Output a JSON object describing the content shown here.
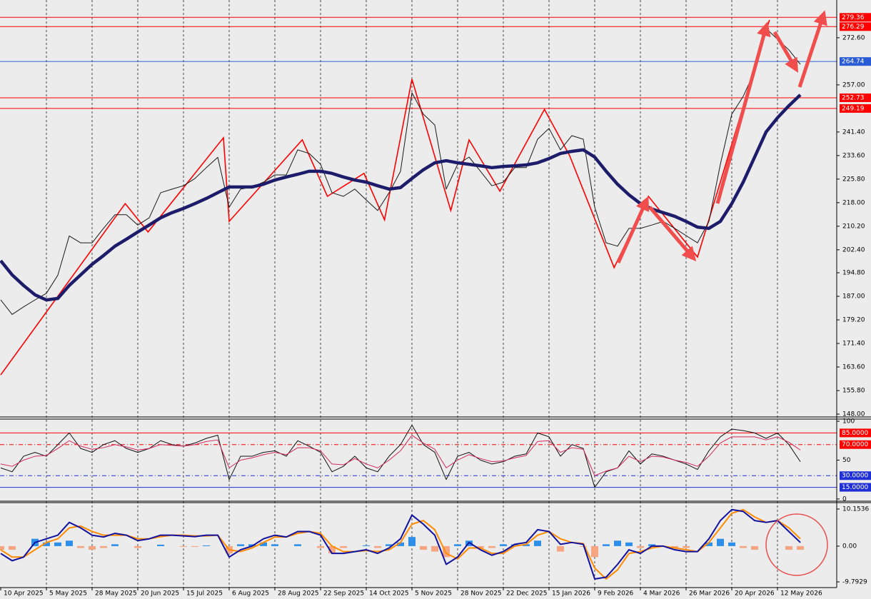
{
  "chart_data": [
    {
      "type": "line",
      "categories": [
        "10 Apr 2025",
        null,
        null,
        null,
        "5 May 2025",
        null,
        null,
        null,
        "28 May 2025",
        null,
        null,
        null,
        "20 Jun 2025",
        null,
        null,
        null,
        "15 Jul 2025",
        null,
        null,
        null,
        "6 Aug 2025",
        null,
        null,
        null,
        "28 Aug 2025",
        null,
        null,
        null,
        "22 Sep 2025",
        null,
        null,
        null,
        "14 Oct 2025",
        null,
        null,
        null,
        "5 Nov 2025",
        null,
        null,
        null,
        "28 Nov 2025",
        null,
        null,
        null,
        "22 Dec 2025",
        null,
        null,
        null,
        "15 Jan 2026",
        null,
        null,
        null,
        "9 Feb 2026",
        null,
        null,
        null,
        "4 Mar 2026",
        null,
        null,
        null,
        "26 Mar 2026",
        null,
        null,
        null,
        "20 Apr 2026",
        null,
        null,
        null,
        "12 May 2026",
        null,
        null
      ],
      "series": [
        {
          "color": "#1a1a1a",
          "values": [
            185.8,
            181,
            183.5,
            185.8,
            188,
            194,
            207,
            204.7,
            204.7,
            209.5,
            214,
            214,
            210.6,
            213,
            221.3,
            222.5,
            223.6,
            226,
            229.6,
            233,
            216.5,
            222.5,
            223.2,
            224.8,
            227.2,
            227.2,
            235.5,
            234.3,
            230.7,
            221.3,
            220.1,
            222.5,
            218.9,
            215.4,
            221.3,
            228.4,
            254.4,
            247.3,
            243.7,
            222.5,
            230.7,
            233.1,
            228.4,
            223.6,
            224.8,
            229.6,
            229.6,
            239,
            242.6,
            235.5,
            240.2,
            239,
            216.5,
            204.7,
            203.6,
            209.5,
            209.5,
            210.6,
            211.8,
            209.5,
            207.1,
            204.7,
            211.8,
            230.7,
            247.3,
            253.2,
            261.5,
            275.7,
            272.1,
            268.6,
            263.8
          ]
        },
        {
          "color": "#1c1c6b",
          "values": [
            198.8,
            194.1,
            190.6,
            187.5,
            185.8,
            186.3,
            190.6,
            194.1,
            197.6,
            200.5,
            203.6,
            205.9,
            208.3,
            210.6,
            213,
            214.7,
            216.1,
            217.7,
            219.4,
            221.3,
            223.2,
            223.2,
            223.2,
            224.1,
            225.5,
            226.5,
            227.4,
            228.4,
            228.4,
            227.7,
            226.5,
            225.5,
            224.8,
            223.6,
            222.5,
            223,
            226,
            228.9,
            231.2,
            231.9,
            231.2,
            230.7,
            230.2,
            229.6,
            230,
            230.2,
            230.5,
            231.2,
            232.6,
            234.3,
            235,
            235.5,
            233.1,
            228.4,
            224.1,
            220.6,
            217.7,
            215.9,
            214.7,
            213.5,
            211.8,
            209.9,
            209.5,
            211.8,
            217.7,
            224.8,
            233.1,
            241.4,
            246.1,
            250.1,
            253.7
          ]
        }
      ],
      "zigzag": {
        "color": "#ff0000",
        "x": [
          0,
          10.9,
          12.9,
          19.5,
          20,
          26.4,
          28.6,
          31.8,
          33.6,
          36,
          39.4,
          41,
          43.7,
          47.6,
          49.8,
          53.7,
          56.7,
          61,
          61.8,
          67.3
        ],
        "values": [
          161,
          217.7,
          208.3,
          239.5,
          211.8,
          238.8,
          220.1,
          227.7,
          212.3,
          258.9,
          215.4,
          238.8,
          221.8,
          248.9,
          233.6,
          196.5,
          220.1,
          200,
          209.9,
          278.5
        ]
      },
      "levels": [
        {
          "value": 279.36,
          "color": "#ff0000"
        },
        {
          "value": 276.29,
          "color": "#ff0000"
        },
        {
          "value": 264.74,
          "color": "#2a5bd7"
        },
        {
          "value": 252.73,
          "color": "#ff0000"
        },
        {
          "value": 249.19,
          "color": "#ff0000"
        }
      ],
      "ylim": [
        147.3,
        285.1
      ],
      "yticks": [
        {
          "value": 272.6,
          "label": "272.60"
        },
        {
          "value": 257,
          "label": "257.00"
        },
        {
          "value": 241.4,
          "label": "241.40"
        },
        {
          "value": 233.6,
          "label": "233.60"
        },
        {
          "value": 225.8,
          "label": "225.80"
        },
        {
          "value": 218,
          "label": "218.00"
        },
        {
          "value": 210.2,
          "label": "210.20"
        },
        {
          "value": 202.4,
          "label": "202.40"
        },
        {
          "value": 194.8,
          "label": "194.80"
        },
        {
          "value": 187,
          "label": "187.00"
        },
        {
          "value": 179.2,
          "label": "179.20"
        },
        {
          "value": 171.4,
          "label": "171.40"
        },
        {
          "value": 163.6,
          "label": "163.60"
        },
        {
          "value": 155.8,
          "label": "155.80"
        },
        {
          "value": 148,
          "label": "148.00"
        }
      ]
    },
    {
      "type": "line",
      "series": [
        {
          "color": "#111111",
          "values": [
            40,
            35,
            55,
            60,
            55,
            70,
            85,
            65,
            60,
            70,
            75,
            65,
            60,
            65,
            75,
            70,
            68,
            72,
            78,
            82,
            25,
            55,
            55,
            60,
            62,
            55,
            75,
            68,
            60,
            35,
            42,
            55,
            40,
            35,
            55,
            70,
            95,
            70,
            60,
            25,
            55,
            60,
            50,
            45,
            48,
            55,
            58,
            85,
            80,
            55,
            70,
            65,
            15,
            35,
            40,
            62,
            45,
            58,
            55,
            50,
            45,
            38,
            62,
            80,
            90,
            88,
            85,
            78,
            85,
            70,
            48
          ]
        },
        {
          "color": "#d42a5a",
          "values": [
            45,
            42,
            50,
            55,
            56,
            65,
            75,
            68,
            64,
            66,
            70,
            67,
            63,
            65,
            70,
            69,
            68,
            70,
            74,
            76,
            40,
            50,
            53,
            57,
            60,
            57,
            66,
            66,
            62,
            45,
            44,
            52,
            45,
            40,
            50,
            62,
            82,
            72,
            64,
            40,
            50,
            57,
            52,
            48,
            49,
            53,
            56,
            74,
            75,
            60,
            66,
            64,
            30,
            36,
            40,
            55,
            48,
            55,
            54,
            50,
            47,
            42,
            55,
            72,
            80,
            80,
            80,
            76,
            80,
            73,
            63
          ]
        }
      ],
      "levels": [
        {
          "value": 85,
          "label": "85.0000",
          "color": "#ff0000",
          "style": "solid"
        },
        {
          "value": 70,
          "label": "70.0000",
          "color": "#ff0000",
          "style": "dashdot"
        },
        {
          "value": 30,
          "label": "30.0000",
          "color": "#1f2fd6",
          "style": "dashdot"
        },
        {
          "value": 15,
          "label": "15.0000",
          "color": "#1f2fd6",
          "style": "solid"
        }
      ],
      "ylim": [
        -2.86,
        101.9
      ],
      "yticks": [
        100,
        50,
        0
      ]
    },
    {
      "type": "macd",
      "histogram": {
        "up_color": "#2f8fe8",
        "down_color": "#f6a582",
        "values": [
          -1,
          -1,
          0,
          2,
          1,
          1,
          1.5,
          -0.5,
          -1,
          -0.5,
          0.5,
          0,
          -0.5,
          0,
          0.4,
          0,
          -0.2,
          -0.2,
          0.2,
          0,
          -2,
          0.5,
          0.5,
          1,
          0.5,
          0,
          0.5,
          0,
          -0.5,
          -2,
          -0.5,
          0,
          0.2,
          -0.5,
          0.5,
          1,
          2.5,
          -1,
          -1.5,
          -3,
          0.5,
          1.5,
          -0.5,
          -0.5,
          0.5,
          0.5,
          0.5,
          1.5,
          0,
          -1.5,
          0,
          -0.2,
          -3,
          0.5,
          1.5,
          1,
          -0.5,
          0.5,
          0,
          -0.5,
          -0.5,
          0,
          1,
          2,
          1,
          -0.5,
          -1,
          0,
          0,
          -1,
          -1
        ]
      },
      "series": [
        {
          "color": "#ff8c00",
          "values": [
            -1,
            -3,
            -3,
            -1,
            1,
            2,
            5,
            5.5,
            4,
            3,
            3,
            3,
            2,
            2,
            2.6,
            3,
            3,
            2.8,
            2.8,
            3,
            -1,
            -1.5,
            -0.5,
            1,
            2.5,
            2.5,
            3.5,
            4,
            3.5,
            0,
            -1.5,
            -1.5,
            -1.2,
            -1.5,
            -1,
            1,
            6,
            7,
            4.5,
            -2,
            -3.5,
            -0.5,
            -0.5,
            -2,
            -2,
            0,
            0.5,
            3,
            4,
            2,
            1,
            0.7,
            -6,
            -9,
            -6.5,
            -2,
            -1.5,
            -0.5,
            0,
            -0.5,
            -1,
            -1.5,
            1,
            5,
            9,
            10,
            8,
            6.5,
            7,
            5,
            2
          ]
        },
        {
          "color": "#1212a0",
          "values": [
            -2,
            -4,
            -3,
            1,
            2,
            3,
            6.5,
            5,
            3,
            2.5,
            3.5,
            3,
            1.5,
            2,
            3,
            3,
            2.8,
            2.6,
            3,
            3,
            -3,
            -1,
            0,
            2,
            3,
            2.5,
            4,
            4,
            3,
            -2,
            -2,
            -1.5,
            -1,
            -2,
            -0.5,
            2,
            8.5,
            6,
            3,
            -5,
            -3,
            1,
            -1,
            -2.5,
            -1.5,
            0.5,
            1,
            4.5,
            4,
            0.5,
            1,
            0.5,
            -9,
            -8.5,
            -5,
            -1,
            -2,
            0,
            0,
            -1,
            -1.5,
            -1.5,
            2,
            7,
            10,
            9.5,
            7,
            6.5,
            7,
            4,
            1
          ]
        }
      ],
      "ylim": [
        -11.16,
        11.72
      ],
      "yticks": [
        10.1536,
        {
          "value": 0,
          "label": "0.00"
        },
        -9.7929
      ]
    }
  ]
}
